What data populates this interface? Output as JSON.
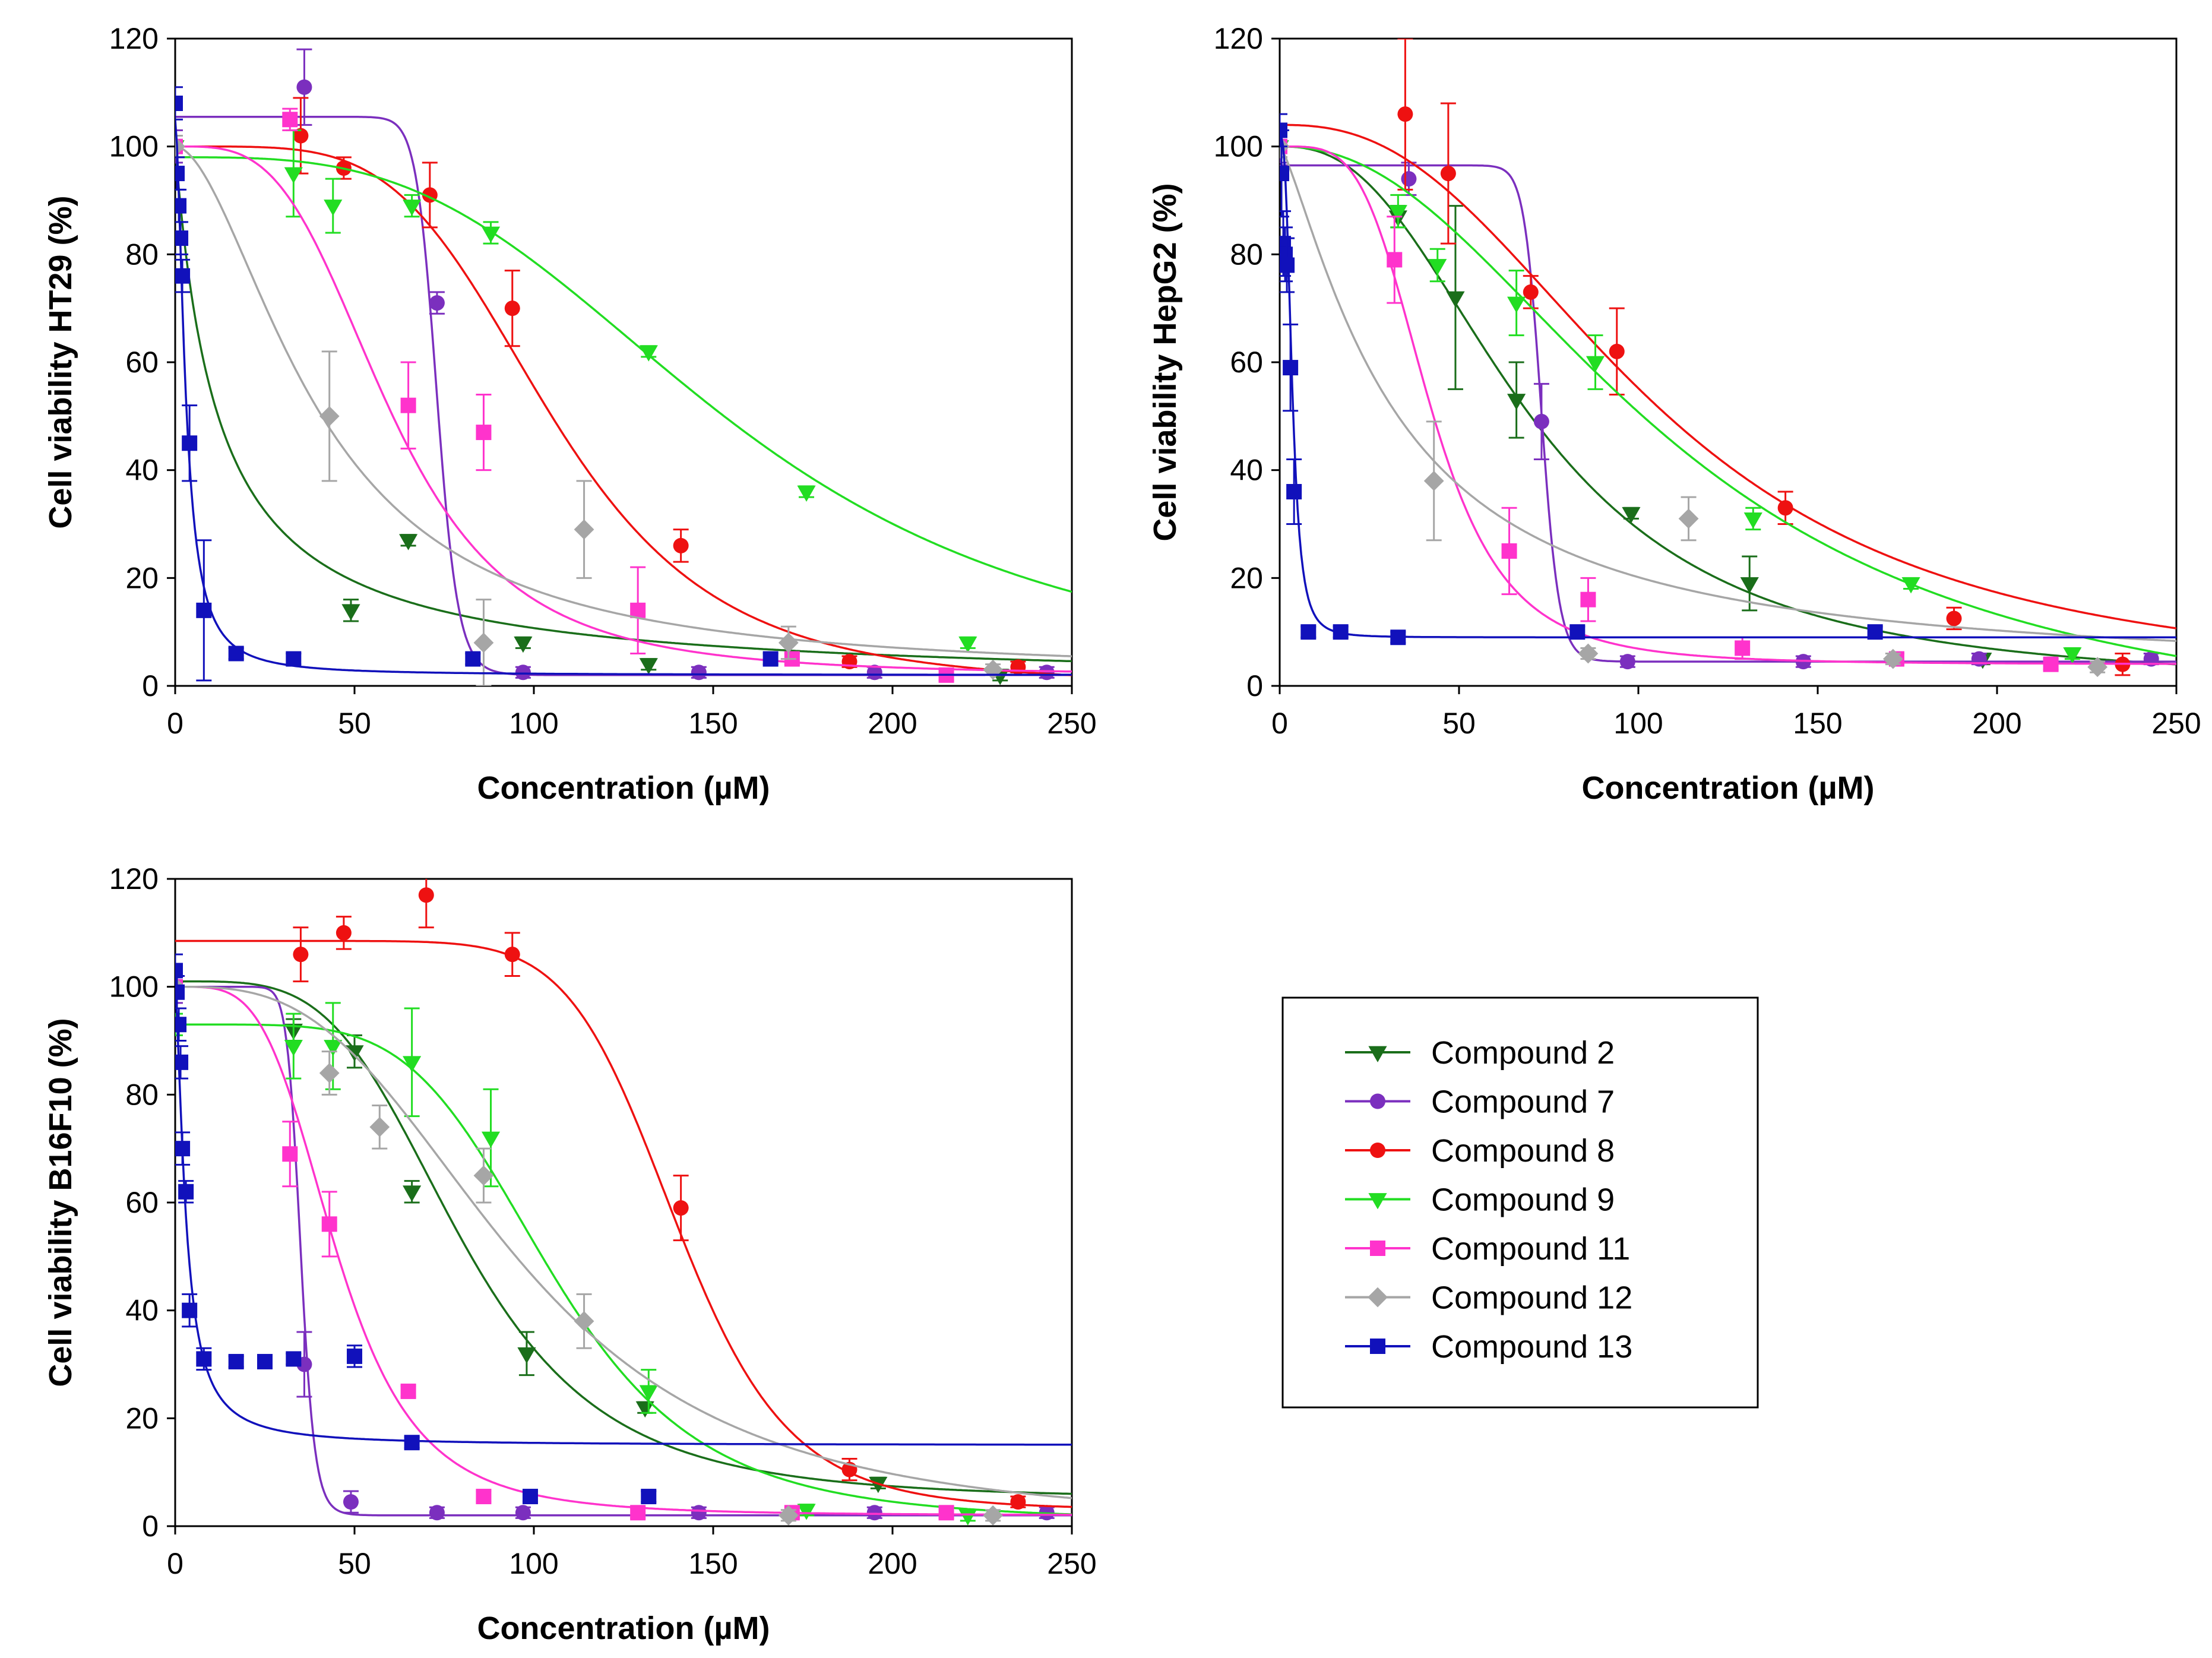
{
  "legend": {
    "entries": [
      {
        "name": "Compound 2",
        "color": "#1a6e1a",
        "marker": "triangle-down"
      },
      {
        "name": "Compound 7",
        "color": "#7b2fbe",
        "marker": "circle"
      },
      {
        "name": "Compound 8",
        "color": "#ee1111",
        "marker": "circle"
      },
      {
        "name": "Compound 9",
        "color": "#22dd22",
        "marker": "triangle-down"
      },
      {
        "name": "Compound 11",
        "color": "#ff33cc",
        "marker": "square"
      },
      {
        "name": "Compound 12",
        "color": "#a6a6a6",
        "marker": "diamond"
      },
      {
        "name": "Compound 13",
        "color": "#1111bb",
        "marker": "square"
      }
    ]
  },
  "chart_data": [
    {
      "type": "scatter",
      "title": "",
      "xlabel": "Concentration (µM)",
      "ylabel": "Cell viability HT29 (%)",
      "xlim": [
        0,
        250
      ],
      "ylim": [
        0,
        120
      ],
      "xticks": [
        0,
        50,
        100,
        150,
        200,
        250
      ],
      "yticks": [
        0,
        20,
        40,
        60,
        80,
        100,
        120
      ],
      "series": [
        {
          "name": "Compound 2",
          "x": [
            0,
            65,
            49,
            97,
            132,
            230
          ],
          "y": [
            100,
            27,
            14,
            8,
            4,
            2
          ],
          "err": [
            2,
            1,
            2,
            1,
            1,
            1
          ],
          "fit": {
            "top": 100,
            "bottom": 0,
            "ec50": 12,
            "hill": 1.0
          }
        },
        {
          "name": "Compound 7",
          "x": [
            0,
            36,
            73,
            97,
            146,
            195,
            243
          ],
          "y": [
            100,
            111,
            71,
            2.5,
            2.5,
            2.5,
            2.5
          ],
          "err": [
            3,
            7,
            2,
            1,
            1,
            1,
            1
          ],
          "fit": {
            "top": 105.5,
            "bottom": 2,
            "ec50": 73,
            "hill": 25
          }
        },
        {
          "name": "Compound 8",
          "x": [
            0,
            35,
            47,
            71,
            94,
            141,
            188,
            235
          ],
          "y": [
            100,
            102,
            96,
            91,
            70,
            26,
            4.5,
            3.5
          ],
          "err": [
            2,
            7,
            2,
            6,
            7,
            3,
            1,
            1
          ],
          "fit": {
            "top": 100,
            "bottom": 0,
            "ec50": 105,
            "hill": 4.5
          }
        },
        {
          "name": "Compound 9",
          "x": [
            0,
            33,
            44,
            66,
            88,
            132,
            176,
            221
          ],
          "y": [
            100,
            95,
            89,
            89,
            84,
            62,
            36,
            8
          ],
          "err": [
            2,
            8,
            5,
            2,
            2,
            1,
            1,
            1
          ],
          "fit": {
            "top": 98,
            "bottom": 0,
            "ec50": 155,
            "hill": 3.2
          }
        },
        {
          "name": "Compound 11",
          "x": [
            0,
            32,
            65,
            86,
            129,
            172,
            215
          ],
          "y": [
            100,
            105,
            52,
            47,
            14,
            5,
            2
          ],
          "err": [
            2,
            2,
            8,
            7,
            8,
            1,
            1
          ],
          "fit": {
            "top": 100,
            "bottom": 2,
            "ec50": 60,
            "hill": 3.5
          }
        },
        {
          "name": "Compound 12",
          "x": [
            0,
            43,
            86,
            114,
            171,
            228
          ],
          "y": [
            100,
            50,
            8,
            29,
            8,
            3
          ],
          "err": [
            2,
            12,
            8,
            9,
            3,
            1
          ],
          "fit": {
            "top": 100,
            "bottom": 2,
            "ec50": 40,
            "hill": 1.8
          }
        },
        {
          "name": "Compound 13",
          "x": [
            0,
            0.5,
            1,
            1.5,
            2,
            4,
            8,
            17,
            33,
            83,
            166
          ],
          "y": [
            108,
            95,
            89,
            83,
            76,
            45,
            14,
            6,
            5,
            5,
            5
          ],
          "err": [
            3,
            3,
            3,
            3,
            3,
            7,
            13,
            1,
            1,
            1,
            1
          ],
          "fit": {
            "top": 105,
            "bottom": 2,
            "ec50": 3,
            "hill": 1.7
          }
        }
      ]
    },
    {
      "type": "scatter",
      "title": "",
      "xlabel": "Concentration (µM)",
      "ylabel": "Cell viability HepG2 (%)",
      "xlim": [
        0,
        250
      ],
      "ylim": [
        0,
        120
      ],
      "xticks": [
        0,
        50,
        100,
        150,
        200,
        250
      ],
      "yticks": [
        0,
        20,
        40,
        60,
        80,
        100,
        120
      ],
      "series": [
        {
          "name": "Compound 2",
          "x": [
            0,
            33,
            49,
            66,
            98,
            131,
            196
          ],
          "y": [
            100,
            87,
            72,
            53,
            32,
            19,
            5
          ],
          "err": [
            2,
            2,
            17,
            7,
            1,
            5,
            1
          ],
          "fit": {
            "top": 100,
            "bottom": 0,
            "ec50": 70,
            "hill": 2.5
          }
        },
        {
          "name": "Compound 7",
          "x": [
            0,
            36,
            73,
            97,
            146,
            195,
            243
          ],
          "y": [
            100,
            94,
            49,
            4.5,
            4.5,
            5,
            5
          ],
          "err": [
            3,
            3,
            7,
            1,
            1,
            1,
            1
          ],
          "fit": {
            "top": 96.5,
            "bottom": 4.5,
            "ec50": 73,
            "hill": 30
          }
        },
        {
          "name": "Compound 8",
          "x": [
            0,
            35,
            47,
            70,
            94,
            141,
            188,
            235
          ],
          "y": [
            100,
            106,
            95,
            73,
            62,
            33,
            12.5,
            4
          ],
          "err": [
            2,
            14,
            13,
            3,
            8,
            3,
            2,
            2
          ],
          "fit": {
            "top": 104,
            "bottom": 0,
            "ec50": 105,
            "hill": 2.5
          }
        },
        {
          "name": "Compound 9",
          "x": [
            0,
            33,
            44,
            66,
            88,
            132,
            176,
            221
          ],
          "y": [
            100,
            88,
            78,
            71,
            60,
            31,
            19,
            6
          ],
          "err": [
            2,
            3,
            3,
            6,
            5,
            2,
            1,
            1
          ],
          "fit": {
            "top": 100,
            "bottom": -10,
            "ec50": 110,
            "hill": 2.2
          }
        },
        {
          "name": "Compound 11",
          "x": [
            0,
            32,
            64,
            86,
            129,
            172,
            215
          ],
          "y": [
            100,
            79,
            25,
            16,
            7,
            5,
            4
          ],
          "err": [
            2,
            8,
            8,
            4,
            2,
            1,
            1
          ],
          "fit": {
            "top": 100,
            "bottom": 4,
            "ec50": 42,
            "hill": 4
          }
        },
        {
          "name": "Compound 12",
          "x": [
            0,
            43,
            86,
            114,
            171,
            228
          ],
          "y": [
            100,
            38,
            6,
            31,
            5,
            3.5
          ],
          "err": [
            2,
            11,
            1,
            4,
            1,
            1
          ],
          "fit": {
            "top": 100,
            "bottom": 2,
            "ec50": 32,
            "hill": 1.3
          }
        },
        {
          "name": "Compound 13",
          "x": [
            0,
            0.5,
            1,
            1.5,
            2,
            3,
            4,
            8,
            17,
            33,
            83,
            166
          ],
          "y": [
            103,
            95,
            82,
            80,
            78,
            59,
            36,
            10,
            10,
            9,
            10,
            10
          ],
          "err": [
            3,
            8,
            6,
            5,
            5,
            8,
            6,
            1,
            1,
            1,
            1,
            1
          ],
          "fit": {
            "top": 102,
            "bottom": 9,
            "ec50": 3.5,
            "hill": 3
          }
        }
      ]
    },
    {
      "type": "scatter",
      "title": "",
      "xlabel": "Concentration (µM)",
      "ylabel": "Cell viability B16F10 (%)",
      "xlim": [
        0,
        250
      ],
      "ylim": [
        0,
        120
      ],
      "xticks": [
        0,
        50,
        100,
        150,
        200,
        250
      ],
      "yticks": [
        0,
        20,
        40,
        60,
        80,
        100,
        120
      ],
      "series": [
        {
          "name": "Compound 2",
          "x": [
            0,
            33,
            50,
            66,
            98,
            131,
            196
          ],
          "y": [
            100,
            92,
            88,
            62,
            32,
            22,
            8
          ],
          "err": [
            2,
            2,
            3,
            2,
            4,
            1,
            1
          ],
          "fit": {
            "top": 101,
            "bottom": 5,
            "ec50": 80,
            "hill": 4
          }
        },
        {
          "name": "Compound 7",
          "x": [
            0,
            36,
            49,
            73,
            97,
            146,
            195,
            243
          ],
          "y": [
            100,
            30,
            4.5,
            2.5,
            2.5,
            2.5,
            2.5,
            2.5
          ],
          "err": [
            3,
            6,
            2,
            1,
            1,
            1,
            1,
            1
          ],
          "fit": {
            "top": 100,
            "bottom": 2,
            "ec50": 35,
            "hill": 18
          }
        },
        {
          "name": "Compound 8",
          "x": [
            0,
            35,
            47,
            70,
            94,
            141,
            188,
            235
          ],
          "y": [
            100,
            106,
            110,
            117,
            106,
            59,
            10.5,
            4.5
          ],
          "err": [
            2,
            5,
            3,
            6,
            4,
            6,
            2,
            1
          ],
          "fit": {
            "top": 108.5,
            "bottom": 3,
            "ec50": 140,
            "hill": 9
          }
        },
        {
          "name": "Compound 9",
          "x": [
            0,
            33,
            44,
            66,
            88,
            132,
            176,
            221
          ],
          "y": [
            93,
            89,
            89,
            86,
            72,
            25,
            3,
            2
          ],
          "err": [
            2,
            6,
            8,
            10,
            9,
            4,
            1,
            1
          ],
          "fit": {
            "top": 93,
            "bottom": 1,
            "ec50": 105,
            "hill": 5
          }
        },
        {
          "name": "Compound 11",
          "x": [
            0,
            32,
            43,
            65,
            86,
            129,
            172,
            215
          ],
          "y": [
            100,
            69,
            56,
            25,
            5.5,
            2.5,
            2.5,
            2.5
          ],
          "err": [
            2,
            6,
            6,
            1,
            1,
            1,
            1,
            1
          ],
          "fit": {
            "top": 100,
            "bottom": 2,
            "ec50": 45,
            "hill": 4
          }
        },
        {
          "name": "Compound 12",
          "x": [
            0,
            43,
            57,
            86,
            114,
            171,
            228
          ],
          "y": [
            100,
            84,
            74,
            65,
            38,
            2,
            2
          ],
          "err": [
            2,
            4,
            4,
            5,
            5,
            1,
            1
          ],
          "fit": {
            "top": 100,
            "bottom": 0,
            "ec50": 95,
            "hill": 3
          }
        },
        {
          "name": "Compound 13",
          "x": [
            0,
            0.5,
            1,
            1.5,
            2,
            3,
            4,
            8,
            17,
            25,
            33,
            50,
            66,
            99,
            132
          ],
          "y": [
            103,
            99,
            93,
            86,
            70,
            62,
            40,
            31,
            30.5,
            30.5,
            31,
            31.5,
            15.5,
            5.5,
            5.5
          ],
          "err": [
            3,
            3,
            3,
            3,
            3,
            2,
            3,
            2,
            1,
            1,
            1,
            2,
            1,
            1,
            1
          ],
          "fit": {
            "top": 100,
            "bottom": 15,
            "ec50": 3,
            "hill": 1.5
          }
        }
      ]
    }
  ]
}
